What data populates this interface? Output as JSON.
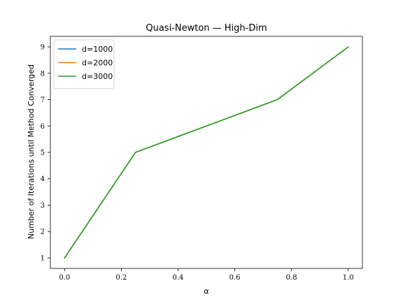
{
  "chart_data": {
    "type": "line",
    "title": "Quasi-Newton — High-Dim",
    "xlabel": "α",
    "ylabel": "Number of Iterations until Method Converged",
    "xlim": [
      -0.05,
      1.05
    ],
    "ylim": [
      0.6,
      9.4
    ],
    "xticks": [
      0.0,
      0.2,
      0.4,
      0.6,
      0.8,
      1.0
    ],
    "xtick_labels": [
      "0.0",
      "0.2",
      "0.4",
      "0.6",
      "0.8",
      "1.0"
    ],
    "yticks": [
      1,
      2,
      3,
      4,
      5,
      6,
      7,
      8,
      9
    ],
    "ytick_labels": [
      "1",
      "2",
      "3",
      "4",
      "5",
      "6",
      "7",
      "8",
      "9"
    ],
    "x": [
      0.0,
      0.25,
      0.5,
      0.75,
      1.0
    ],
    "series": [
      {
        "name": "d=1000",
        "color": "#1f77b4",
        "values": [
          1,
          5,
          6,
          7,
          9
        ]
      },
      {
        "name": "d=2000",
        "color": "#ff7f0e",
        "values": [
          1,
          5,
          6,
          7,
          9
        ]
      },
      {
        "name": "d=3000",
        "color": "#2ca02c",
        "values": [
          1,
          5,
          6,
          7,
          9
        ]
      }
    ],
    "grid": false,
    "legend_position": "top-left"
  }
}
